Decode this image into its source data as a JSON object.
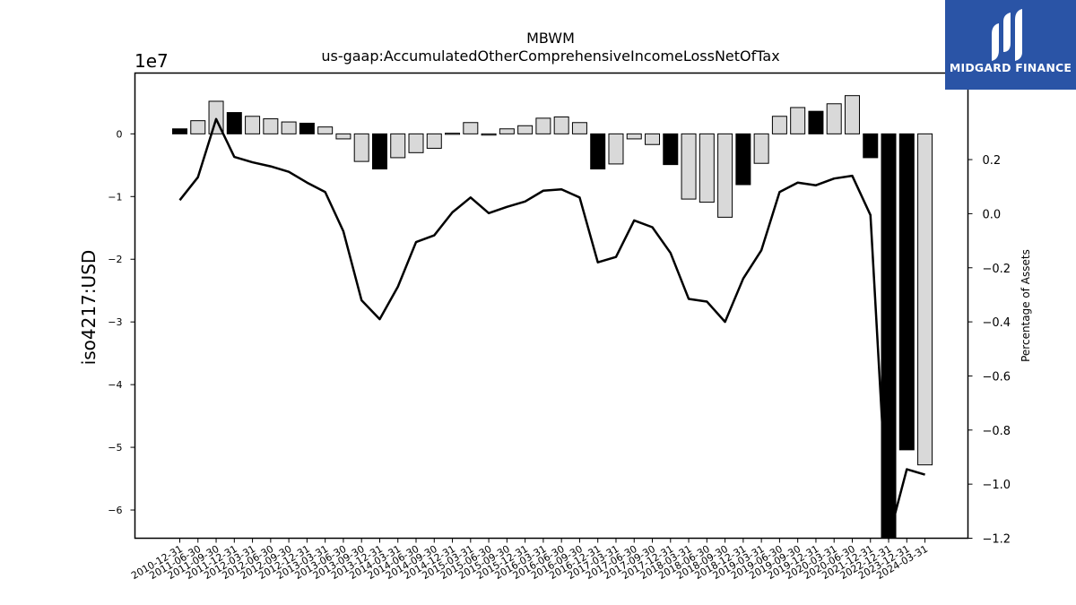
{
  "brand": {
    "name": "MIDGARD FINANCE",
    "color": "#2a54a6"
  },
  "chart_data": {
    "type": "bar",
    "title": "MBWM",
    "subtitle": "us-gaap:AccumulatedOtherComprehensiveIncomeLossNetOfTax",
    "ylabel": "iso4217:USD",
    "y_offset_label": "1e7",
    "y2label": "Percentage of Assets",
    "ylim": [
      -64500000,
      9700000
    ],
    "y2lim": [
      -1.2,
      0.52
    ],
    "yticks": [
      0,
      -10000000,
      -20000000,
      -30000000,
      -40000000,
      -50000000,
      -60000000
    ],
    "ytick_labels": [
      "0",
      "−1",
      "−2",
      "−3",
      "−4",
      "−5",
      "−6"
    ],
    "y2ticks": [
      0.2,
      0.0,
      -0.2,
      -0.4,
      -0.6,
      -0.8,
      -1.0,
      -1.2
    ],
    "y2tick_labels": [
      "0.2",
      "0.0",
      "−0.2",
      "−0.4",
      "−0.6",
      "−0.8",
      "−1.0",
      "−1.2"
    ],
    "grid": false,
    "categories": [
      "2010-12-31",
      "2011-06-30",
      "2011-09-30",
      "2011-12-31",
      "2012-03-31",
      "2012-06-30",
      "2012-09-30",
      "2012-12-31",
      "2013-03-31",
      "2013-06-30",
      "2013-09-30",
      "2013-12-31",
      "2014-03-31",
      "2014-06-30",
      "2014-09-30",
      "2014-12-31",
      "2015-03-31",
      "2015-06-30",
      "2015-09-30",
      "2015-12-31",
      "2016-03-31",
      "2016-06-30",
      "2016-09-30",
      "2016-12-31",
      "2017-03-31",
      "2017-06-30",
      "2017-09-30",
      "2017-12-31",
      "2018-03-31",
      "2018-06-30",
      "2018-09-30",
      "2018-12-31",
      "2019-03-31",
      "2019-06-30",
      "2019-09-30",
      "2019-12-31",
      "2020-03-31",
      "2020-06-30",
      "2021-12-31",
      "2022-12-31",
      "2023-12-31",
      "2024-03-31"
    ],
    "series": [
      {
        "kind": "bar",
        "values": [
          800000,
          2100000,
          5200000,
          3400000,
          2800000,
          2400000,
          1900000,
          1700000,
          1100000,
          -800000,
          -4400000,
          -5600000,
          -3800000,
          -3000000,
          -2300000,
          100000,
          1800000,
          -200000,
          800000,
          1300000,
          2500000,
          2700000,
          1800000,
          -5600000,
          -4800000,
          -800000,
          -1700000,
          -4900000,
          -10400000,
          -10900000,
          -13300000,
          -8100000,
          -4700000,
          2800000,
          4200000,
          3600000,
          4800000,
          6100000,
          -3800000,
          -64500000,
          -50400000,
          -52800000
        ],
        "annual": [
          true,
          false,
          false,
          true,
          false,
          false,
          false,
          true,
          false,
          false,
          false,
          true,
          false,
          false,
          false,
          false,
          false,
          false,
          false,
          false,
          false,
          false,
          false,
          true,
          false,
          false,
          false,
          true,
          false,
          false,
          false,
          true,
          false,
          false,
          false,
          true,
          false,
          false,
          true,
          true,
          true,
          false
        ],
        "colors": {
          "annual": "#000000",
          "quarterly": "#d9d9d9"
        }
      },
      {
        "kind": "line",
        "axis": "y2",
        "color": "#000000",
        "values": [
          0.05,
          0.135,
          0.35,
          0.21,
          0.19,
          0.175,
          0.155,
          0.115,
          0.08,
          -0.065,
          -0.32,
          -0.39,
          -0.27,
          -0.105,
          -0.08,
          0.005,
          0.06,
          0.002,
          0.025,
          0.045,
          0.085,
          0.09,
          0.06,
          -0.18,
          -0.16,
          -0.025,
          -0.05,
          -0.145,
          -0.315,
          -0.325,
          -0.4,
          -0.24,
          -0.135,
          0.08,
          0.115,
          0.105,
          0.13,
          0.14,
          -0.005,
          -1.2,
          -0.945,
          -0.965
        ]
      }
    ]
  }
}
